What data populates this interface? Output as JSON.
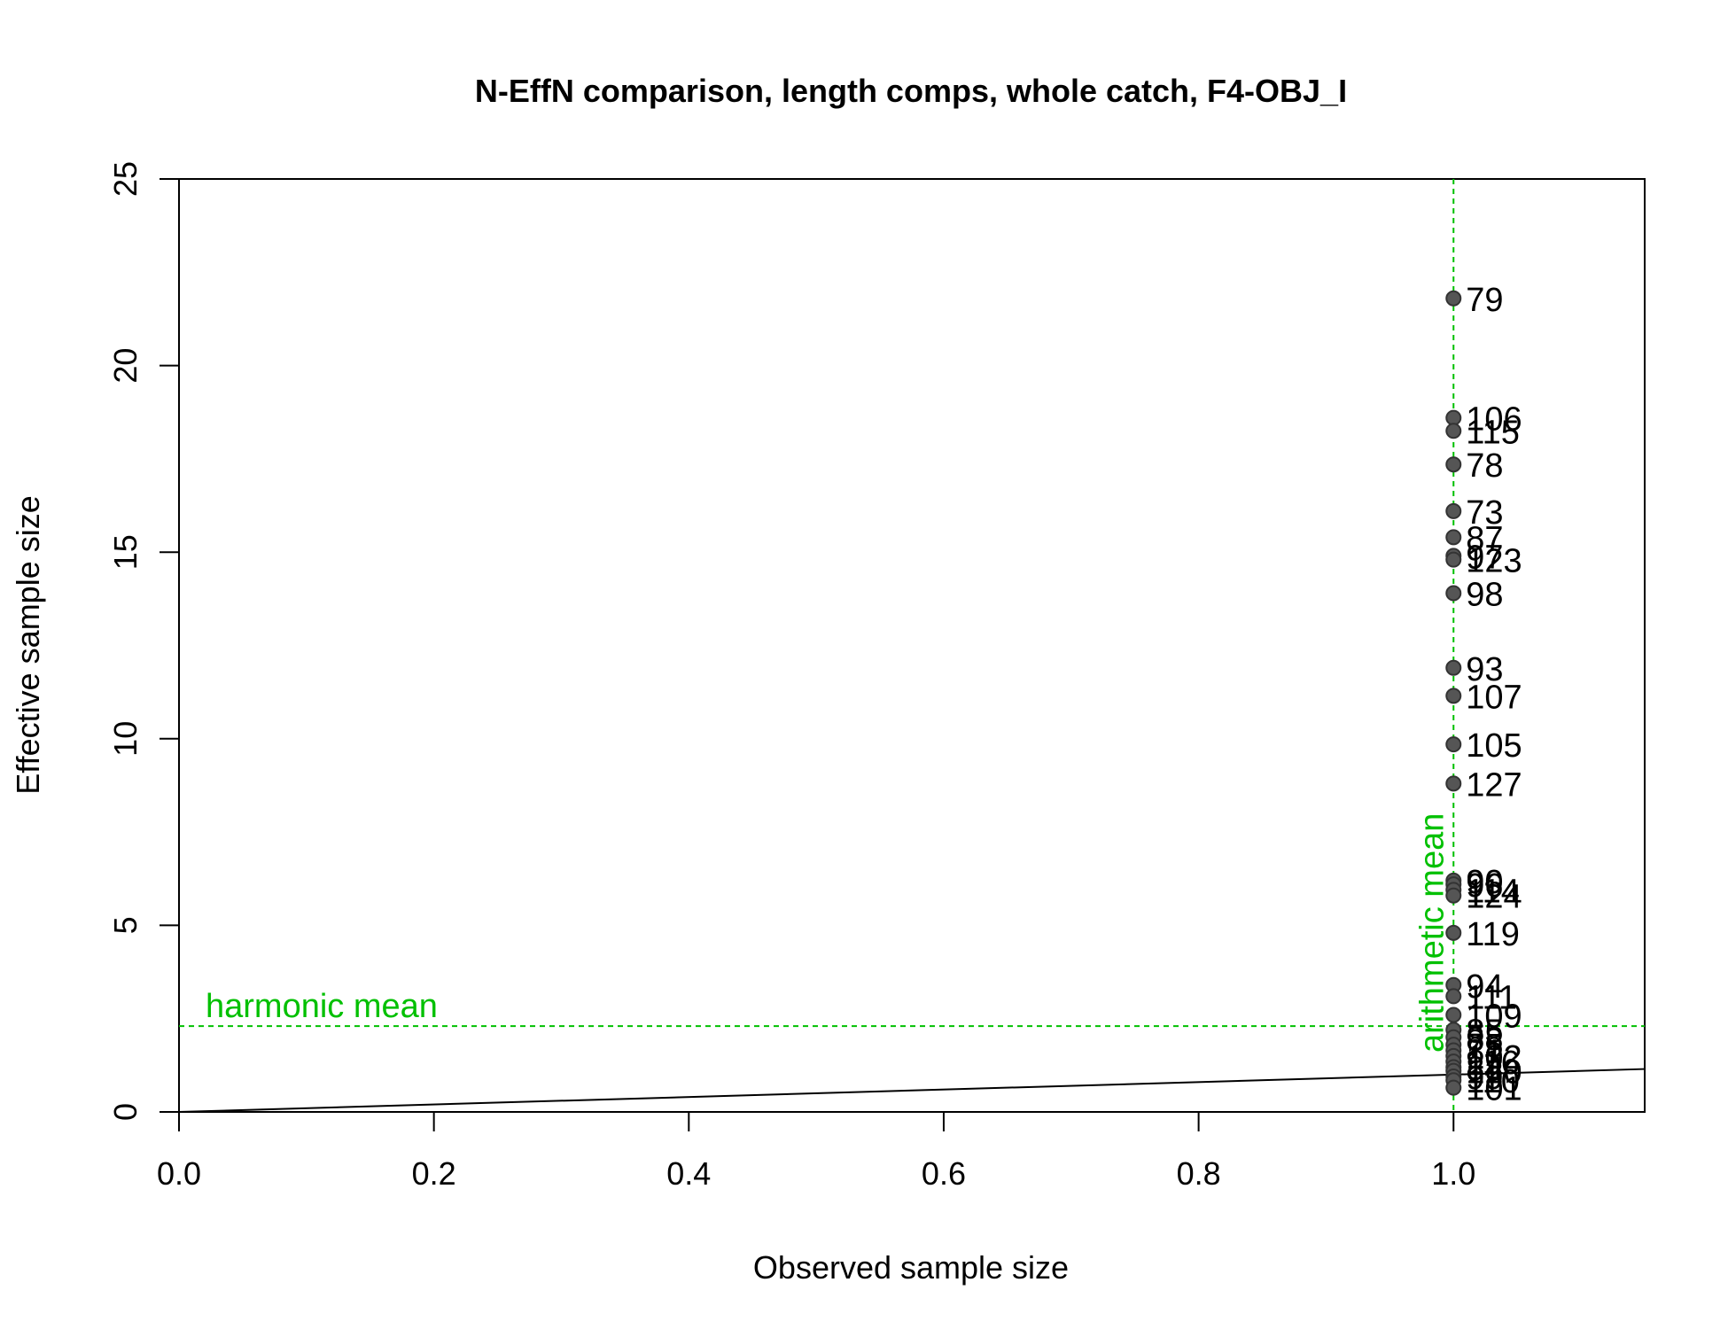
{
  "chart_data": {
    "type": "scatter",
    "title": "N-EffN comparison, length comps, whole catch, F4-OBJ_I",
    "xlabel": "Observed sample size",
    "ylabel": "Effective sample size",
    "xlim": [
      0,
      1.15
    ],
    "ylim": [
      0,
      25
    ],
    "x_ticks": [
      "0.0",
      "0.2",
      "0.4",
      "0.6",
      "0.8",
      "1.0"
    ],
    "y_ticks": [
      "0",
      "5",
      "10",
      "15",
      "20",
      "25"
    ],
    "grid": false,
    "legend": "none",
    "point_color": "#555555",
    "reference_color": "#00c000",
    "one_to_one_line": {
      "slope": 1,
      "intercept": 0
    },
    "harmonic_mean": {
      "label": "harmonic mean",
      "value": 2.3
    },
    "arithmetic_mean": {
      "label": "arithmetic mean",
      "value": 1.0
    },
    "points": [
      {
        "label": "79",
        "x": 1.0,
        "y": 21.8
      },
      {
        "label": "106",
        "x": 1.0,
        "y": 18.6
      },
      {
        "label": "115",
        "x": 1.0,
        "y": 18.25
      },
      {
        "label": "78",
        "x": 1.0,
        "y": 17.35
      },
      {
        "label": "73",
        "x": 1.0,
        "y": 16.1
      },
      {
        "label": "87",
        "x": 1.0,
        "y": 15.4
      },
      {
        "label": "97",
        "x": 1.0,
        "y": 14.9
      },
      {
        "label": "123",
        "x": 1.0,
        "y": 14.8
      },
      {
        "label": "98",
        "x": 1.0,
        "y": 13.9
      },
      {
        "label": "93",
        "x": 1.0,
        "y": 11.9
      },
      {
        "label": "107",
        "x": 1.0,
        "y": 11.15
      },
      {
        "label": "105",
        "x": 1.0,
        "y": 9.85
      },
      {
        "label": "127",
        "x": 1.0,
        "y": 8.8
      },
      {
        "label": "90",
        "x": 1.0,
        "y": 6.2
      },
      {
        "label": "96",
        "x": 1.0,
        "y": 6.1
      },
      {
        "label": "114",
        "x": 1.0,
        "y": 5.95
      },
      {
        "label": "124",
        "x": 1.0,
        "y": 5.8
      },
      {
        "label": "119",
        "x": 1.0,
        "y": 4.8
      },
      {
        "label": "94",
        "x": 1.0,
        "y": 3.4
      },
      {
        "label": "111",
        "x": 1.0,
        "y": 3.1
      },
      {
        "label": "109",
        "x": 1.0,
        "y": 2.6
      },
      {
        "label": "85",
        "x": 1.0,
        "y": 2.2
      },
      {
        "label": "88",
        "x": 1.0,
        "y": 2.0
      },
      {
        "label": "75",
        "x": 1.0,
        "y": 1.8
      },
      {
        "label": "81",
        "x": 1.0,
        "y": 1.65
      },
      {
        "label": "102",
        "x": 1.0,
        "y": 1.5
      },
      {
        "label": "116",
        "x": 1.0,
        "y": 1.35
      },
      {
        "label": "84",
        "x": 1.0,
        "y": 1.2
      },
      {
        "label": "120",
        "x": 1.0,
        "y": 1.1
      },
      {
        "label": "99",
        "x": 1.0,
        "y": 0.95
      },
      {
        "label": "110",
        "x": 1.0,
        "y": 0.85
      },
      {
        "label": "101",
        "x": 1.0,
        "y": 0.65
      }
    ]
  }
}
